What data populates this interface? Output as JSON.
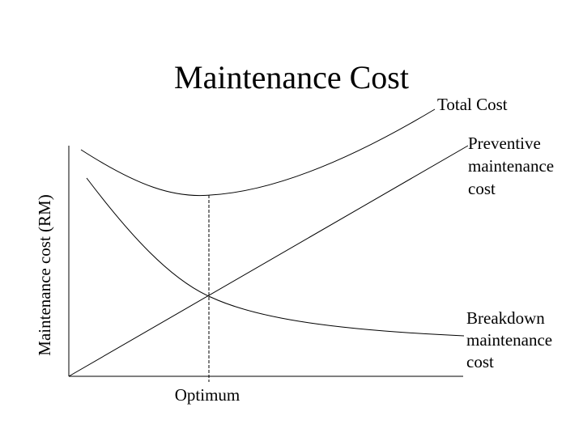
{
  "title": "Maintenance Cost",
  "y_axis_label": "Maintenance cost (RM)",
  "curve_labels": {
    "total_cost": "Total Cost",
    "preventive": [
      "Preventive",
      "maintenance",
      "cost"
    ],
    "breakdown": [
      "Breakdown",
      "maintenance",
      "cost"
    ]
  },
  "optimum_label": "Optimum"
}
